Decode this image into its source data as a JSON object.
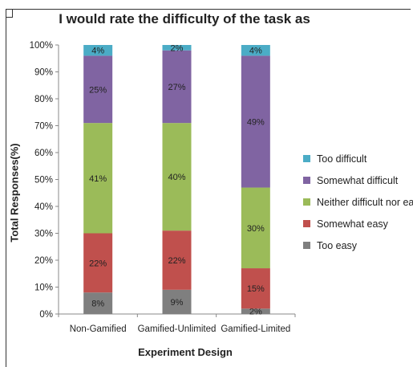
{
  "chart_data": {
    "type": "bar",
    "stacked": true,
    "title": "I would rate the difficulty of the task as",
    "xlabel": "Experiment Design",
    "ylabel": "Total Responses(%)",
    "categories": [
      "Non-Gamified",
      "Gamified-Unlimited",
      "Gamified-Limited"
    ],
    "ylim": [
      0,
      100
    ],
    "yticks": [
      "0%",
      "10%",
      "20%",
      "30%",
      "40%",
      "50%",
      "60%",
      "70%",
      "80%",
      "90%",
      "100%"
    ],
    "grid": false,
    "legend_position": "right",
    "series": [
      {
        "name": "Too easy",
        "color": "#7f7f7f",
        "values": [
          8,
          9,
          2
        ],
        "labels": [
          "8%",
          "9%",
          "2%"
        ]
      },
      {
        "name": "Somewhat easy",
        "color": "#c0504d",
        "values": [
          22,
          22,
          15
        ],
        "labels": [
          "22%",
          "22%",
          "15%"
        ]
      },
      {
        "name": "Neither difficult nor easy",
        "color": "#9bbb59",
        "values": [
          41,
          40,
          30
        ],
        "labels": [
          "41%",
          "40%",
          "30%"
        ]
      },
      {
        "name": "Somewhat difficult",
        "color": "#8064a2",
        "values": [
          25,
          27,
          49
        ],
        "labels": [
          "25%",
          "27%",
          "49%"
        ]
      },
      {
        "name": "Too difficult",
        "color": "#4bacc6",
        "values": [
          4,
          2,
          4
        ],
        "labels": [
          "4%",
          "2%",
          "4%"
        ]
      }
    ]
  }
}
